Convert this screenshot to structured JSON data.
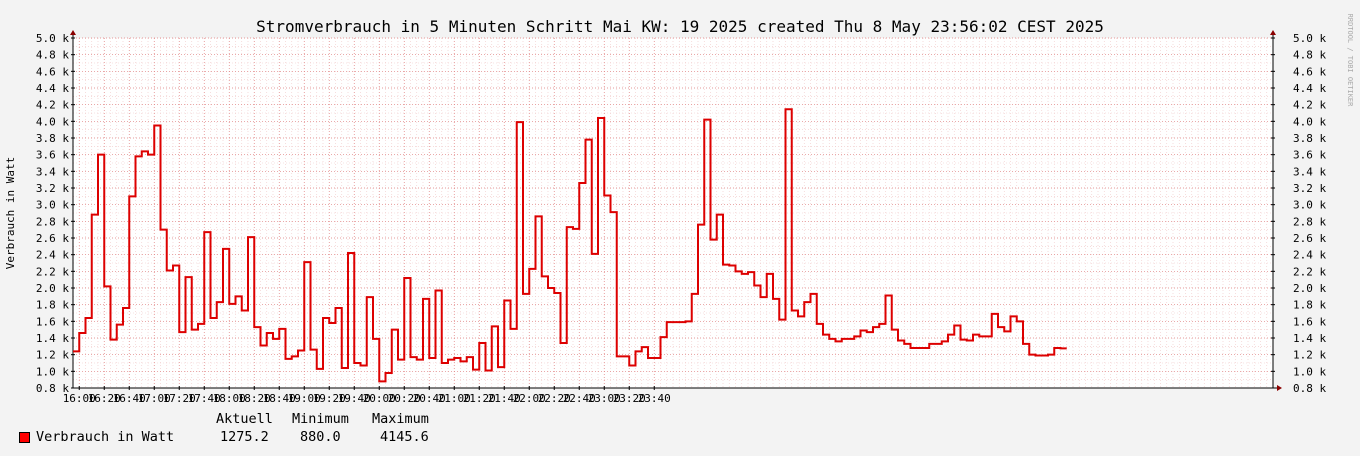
{
  "chart_data": {
    "type": "line",
    "title": "Stromverbrauch in 5 Minuten Schritt Mai KW: 19 2025 created Thu  8 May 23:56:02 CEST 2025",
    "ylabel": "Verbrauch in Watt",
    "watermark": "RRDTOOL / TOBI OETIKER",
    "y_ticks": [
      "0.8 k",
      "1.0 k",
      "1.2 k",
      "1.4 k",
      "1.6 k",
      "1.8 k",
      "2.0 k",
      "2.2 k",
      "2.4 k",
      "2.6 k",
      "2.8 k",
      "3.0 k",
      "3.2 k",
      "3.4 k",
      "3.6 k",
      "3.8 k",
      "4.0 k",
      "4.2 k",
      "4.4 k",
      "4.6 k",
      "4.8 k",
      "5.0 k"
    ],
    "x_ticks": [
      "16:00",
      "16:20",
      "16:40",
      "17:00",
      "17:20",
      "17:40",
      "18:00",
      "18:20",
      "18:40",
      "19:00",
      "19:20",
      "19:40",
      "20:00",
      "20:20",
      "20:40",
      "21:00",
      "21:20",
      "21:40",
      "22:00",
      "22:20",
      "22:40",
      "23:00",
      "23:20",
      "23:40"
    ],
    "ylim": [
      800,
      5000
    ],
    "grid": true,
    "series": [
      {
        "name": "Verbrauch in Watt",
        "color": "#ff0000",
        "step_minutes": 5,
        "start": "15:55",
        "values": [
          1240,
          1460,
          1640,
          2880,
          3600,
          2020,
          1380,
          1560,
          1760,
          3100,
          3580,
          3640,
          3600,
          3950,
          2700,
          2210,
          2270,
          1470,
          2130,
          1500,
          1570,
          2670,
          1640,
          1830,
          2470,
          1810,
          1900,
          1730,
          2610,
          1530,
          1310,
          1460,
          1390,
          1510,
          1150,
          1180,
          1250,
          2310,
          1260,
          1030,
          1640,
          1580,
          1760,
          1040,
          2420,
          1100,
          1070,
          1890,
          1390,
          880,
          980,
          1500,
          1140,
          2120,
          1170,
          1140,
          1870,
          1160,
          1970,
          1100,
          1140,
          1160,
          1120,
          1170,
          1020,
          1340,
          1010,
          1540,
          1050,
          1850,
          1510,
          3990,
          1930,
          2230,
          2860,
          2140,
          2000,
          1940,
          1340,
          2730,
          2710,
          3260,
          3780,
          2410,
          4040,
          3110,
          2910,
          1180,
          1180,
          1070,
          1240,
          1290,
          1160,
          1160,
          1410,
          1590,
          1590,
          1590,
          1600,
          1930,
          2760,
          4020,
          2580,
          2880,
          2280,
          2270,
          2200,
          2170,
          2190,
          2030,
          1890,
          2170,
          1870,
          1620,
          4145.6,
          1730,
          1660,
          1830,
          1930,
          1570,
          1440,
          1390,
          1360,
          1390,
          1390,
          1420,
          1490,
          1470,
          1530,
          1570,
          1910,
          1500,
          1370,
          1330,
          1280,
          1280,
          1280,
          1330,
          1330,
          1360,
          1440,
          1550,
          1380,
          1370,
          1440,
          1420,
          1420,
          1690,
          1530,
          1480,
          1660,
          1600,
          1330,
          1200,
          1190,
          1190,
          1200,
          1280,
          1275.2
        ]
      }
    ]
  },
  "legend": {
    "headers": {
      "current": "Aktuell",
      "minimum": "Minimum",
      "maximum": "Maximum"
    },
    "series_name": "Verbrauch in Watt",
    "current": "1275.2",
    "minimum": "880.0",
    "maximum": "4145.6"
  }
}
